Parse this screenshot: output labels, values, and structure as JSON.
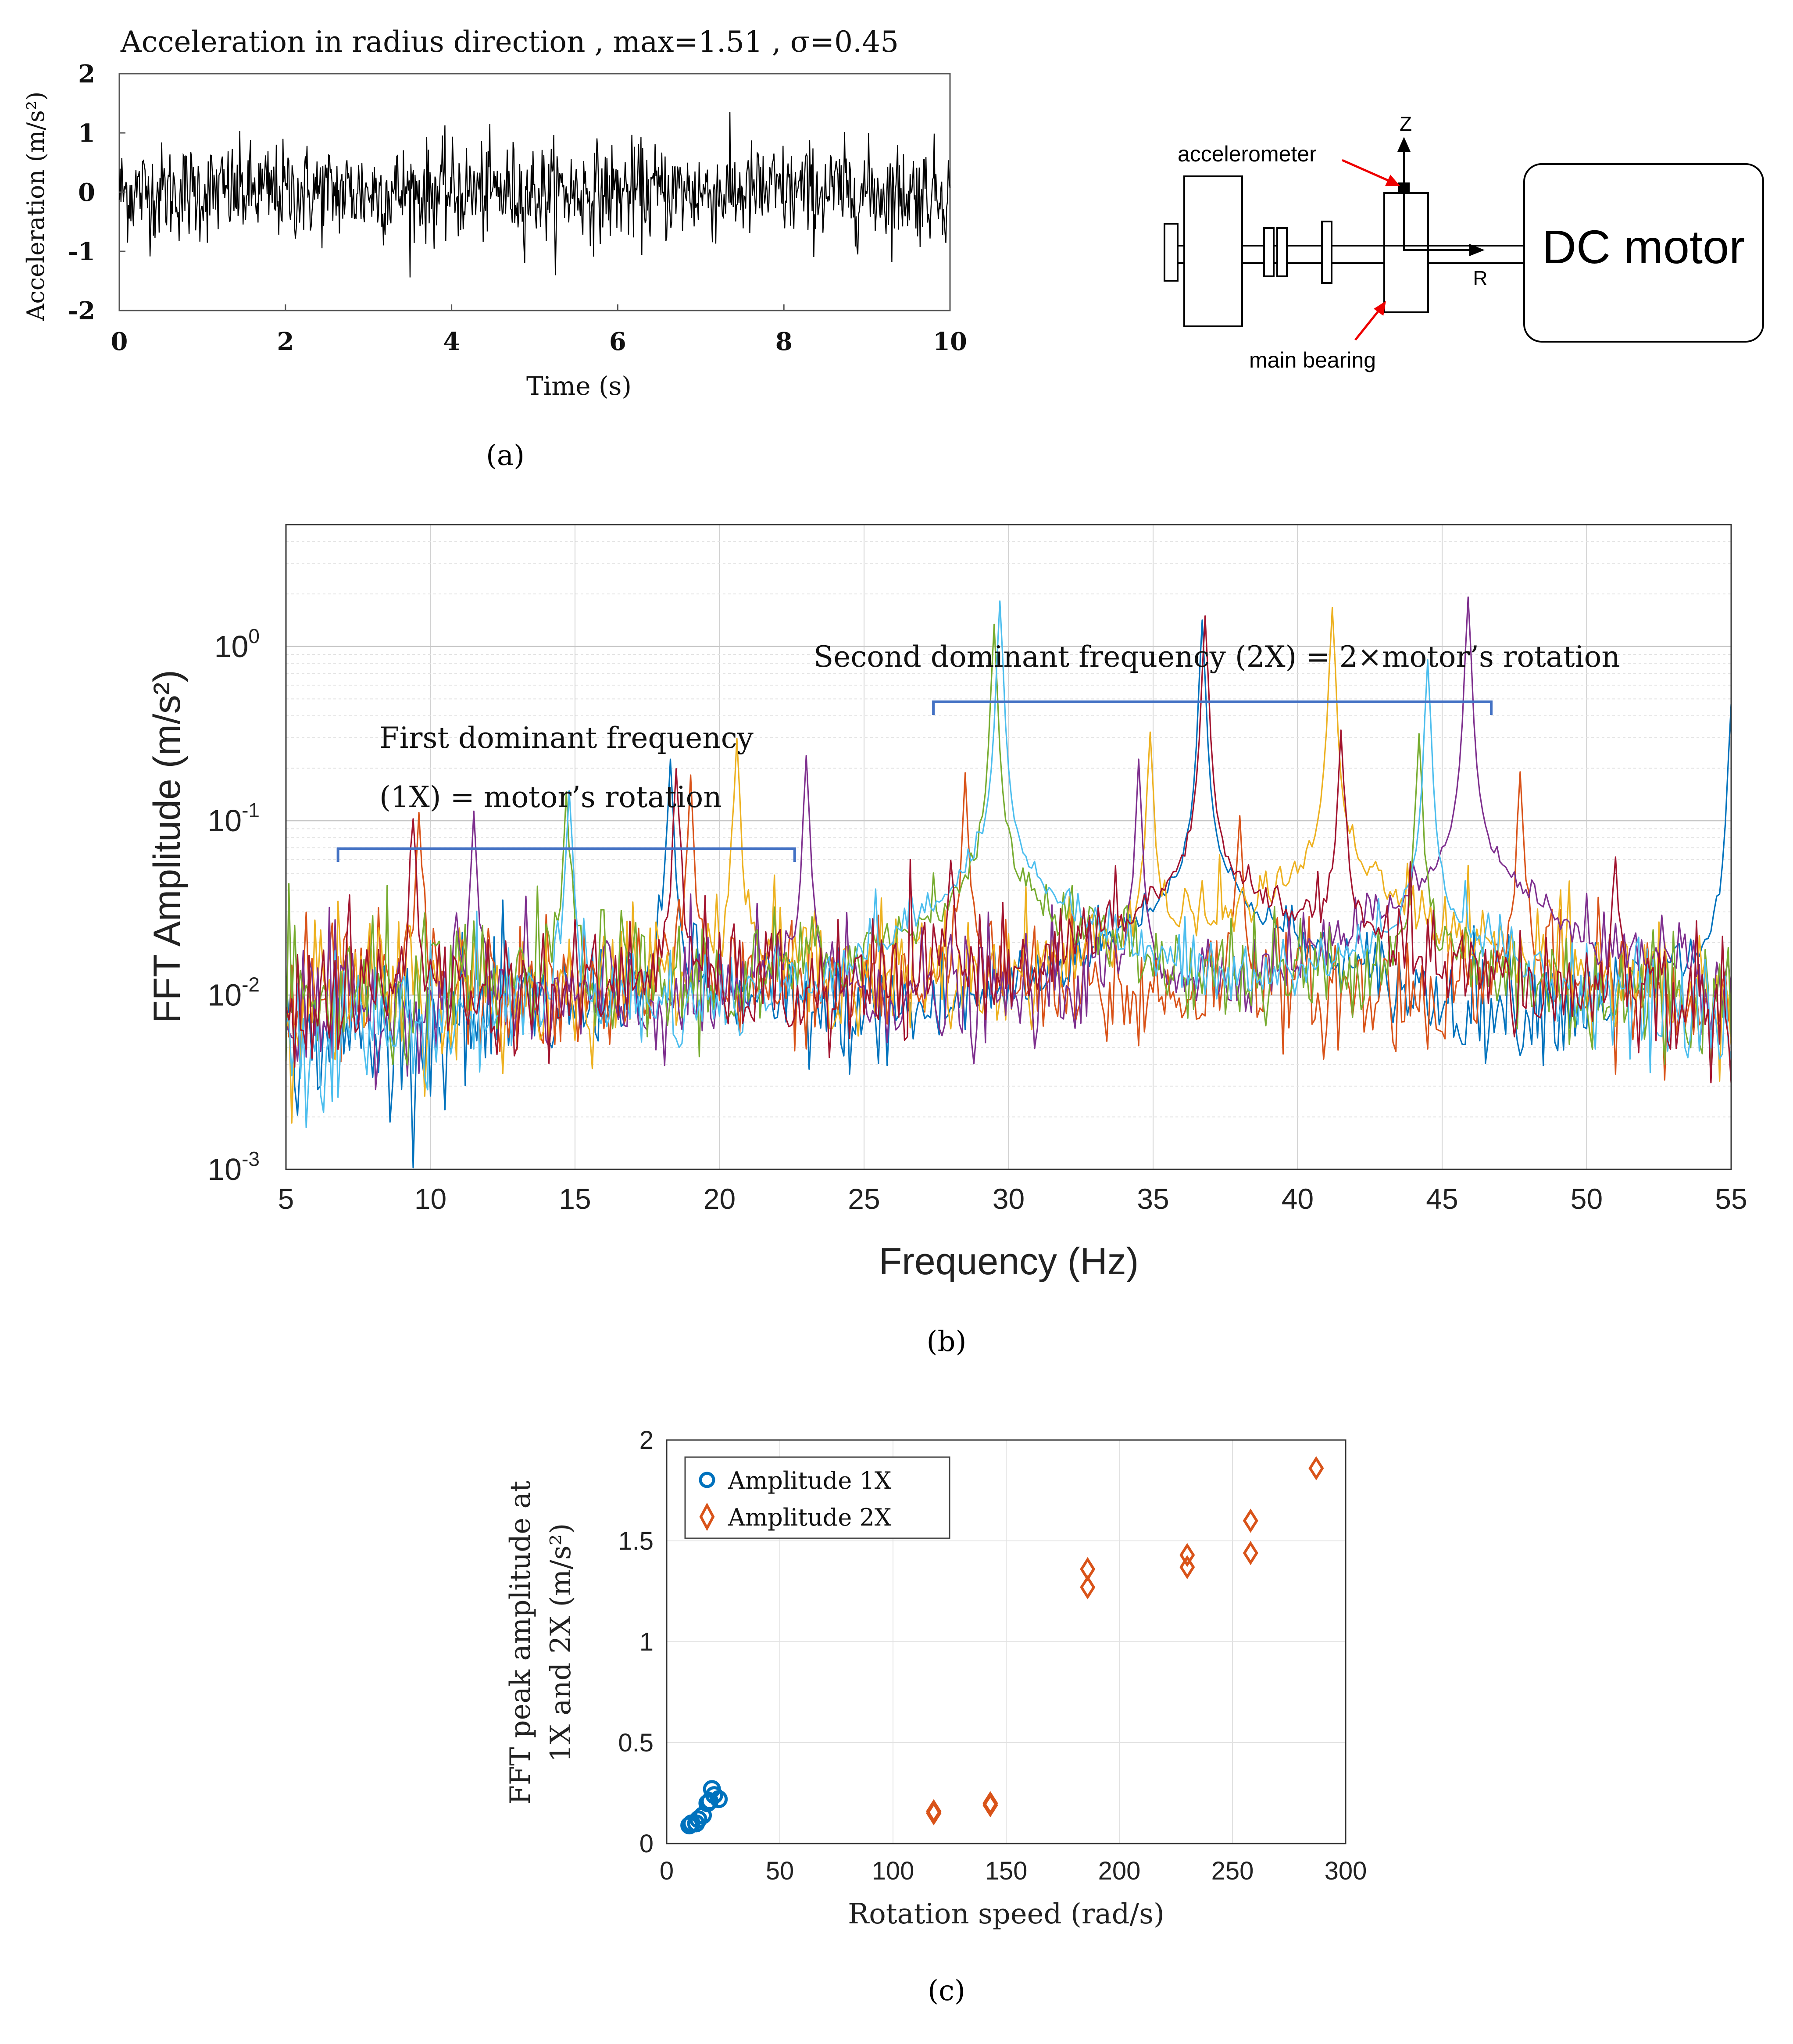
{
  "figure": {
    "panel_labels": [
      "(a)",
      "(b)",
      "(c)"
    ]
  },
  "chart_data": [
    {
      "id": "a",
      "type": "line",
      "title": "Acceleration in radius direction , max=1.51 , σ=0.45",
      "xlabel": "Time (s)",
      "ylabel": "Acceleration (m/s²)",
      "xlim": [
        0,
        10
      ],
      "ylim": [
        -2,
        2
      ],
      "xticks": [
        "0",
        "2",
        "4",
        "6",
        "8",
        "10"
      ],
      "yticks": [
        "-2",
        "-1",
        "0",
        "1",
        "2"
      ],
      "grid": false,
      "series": [
        {
          "stats": {
            "max": 1.51,
            "sigma": 0.45
          },
          "samples": 1000,
          "color": "#000000"
        }
      ]
    },
    {
      "id": "b",
      "type": "line",
      "xlabel": "Frequency (Hz)",
      "ylabel": "FFT Amplitude (m/s²)",
      "yscale": "log",
      "xlim": [
        5,
        55
      ],
      "ylim": [
        0.001,
        5
      ],
      "xticks": [
        "5",
        "10",
        "15",
        "20",
        "25",
        "30",
        "35",
        "40",
        "45",
        "50",
        "55"
      ],
      "yticks": [
        "10-3",
        "10-2",
        "10-1",
        "100"
      ],
      "grid": true,
      "annotations": [
        {
          "text_lines": [
            "First  dominant  frequency",
            "(1X)   =   motor’s   rotation"
          ],
          "bracket_hz": [
            6.8,
            22.6
          ]
        },
        {
          "text_lines": [
            "Second  dominant  frequency  (2X)  =  2×motor’s  rotation"
          ],
          "bracket_hz": [
            27.4,
            46.7
          ]
        }
      ],
      "series": [
        {
          "color": "#0072BD",
          "peaks": [
            {
              "x": 18.3,
              "y": 0.21
            },
            {
              "x": 36.7,
              "y": 1.37
            },
            {
              "x": 55.0,
              "y": 0.45
            }
          ]
        },
        {
          "color": "#D95319",
          "peaks": [
            {
              "x": 9.6,
              "y": 0.095
            },
            {
              "x": 19.0,
              "y": 0.16
            },
            {
              "x": 28.5,
              "y": 0.17
            },
            {
              "x": 38.0,
              "y": 0.1
            },
            {
              "x": 47.7,
              "y": 0.18
            }
          ]
        },
        {
          "color": "#EDB120",
          "peaks": [
            {
              "x": 20.6,
              "y": 0.27
            },
            {
              "x": 34.9,
              "y": 0.3
            },
            {
              "x": 41.2,
              "y": 1.6
            }
          ]
        },
        {
          "color": "#7E2F8E",
          "peaks": [
            {
              "x": 11.5,
              "y": 0.1
            },
            {
              "x": 23.0,
              "y": 0.22
            },
            {
              "x": 34.5,
              "y": 0.2
            },
            {
              "x": 45.9,
              "y": 1.86
            }
          ]
        },
        {
          "color": "#77AC30",
          "peaks": [
            {
              "x": 14.7,
              "y": 0.13
            },
            {
              "x": 29.5,
              "y": 1.27
            },
            {
              "x": 44.2,
              "y": 0.3
            }
          ]
        },
        {
          "color": "#4DBEEE",
          "peaks": [
            {
              "x": 14.8,
              "y": 0.14
            },
            {
              "x": 29.7,
              "y": 1.76
            },
            {
              "x": 44.5,
              "y": 0.8
            }
          ]
        },
        {
          "color": "#A2142F",
          "peaks": [
            {
              "x": 9.4,
              "y": 0.09
            },
            {
              "x": 18.5,
              "y": 0.18
            },
            {
              "x": 28.0,
              "y": 0.05
            },
            {
              "x": 36.8,
              "y": 1.44
            },
            {
              "x": 41.5,
              "y": 0.3
            },
            {
              "x": 51.0,
              "y": 0.05
            }
          ]
        }
      ]
    },
    {
      "id": "c",
      "type": "scatter",
      "xlabel": "Rotation speed (rad/s)",
      "ylabel": [
        "FFT peak amplitude at",
        "1X and 2X (m/s²)"
      ],
      "xlim": [
        0,
        300
      ],
      "ylim": [
        0,
        2
      ],
      "xticks": [
        "0",
        "50",
        "100",
        "150",
        "200",
        "250",
        "300"
      ],
      "yticks": [
        "0",
        "0.5",
        "1",
        "1.5",
        "2"
      ],
      "grid": true,
      "legend": "top-left",
      "series": [
        {
          "name": "Amplitude 1X",
          "marker": "circle",
          "color": "#0072BD",
          "points": [
            [
              10,
              0.09
            ],
            [
              11,
              0.1
            ],
            [
              13,
              0.1
            ],
            [
              14,
              0.12
            ],
            [
              16,
              0.14
            ],
            [
              18,
              0.2
            ],
            [
              19,
              0.21
            ],
            [
              20,
              0.27
            ],
            [
              21,
              0.24
            ],
            [
              23,
              0.22
            ]
          ]
        },
        {
          "name": "Amplitude 2X",
          "marker": "diamond",
          "color": "#D95319",
          "points": [
            [
              118,
              0.16
            ],
            [
              118,
              0.15
            ],
            [
              143,
              0.2
            ],
            [
              143,
              0.19
            ],
            [
              186,
              1.36
            ],
            [
              186,
              1.27
            ],
            [
              230,
              1.43
            ],
            [
              230,
              1.37
            ],
            [
              258,
              1.6
            ],
            [
              258,
              1.44
            ],
            [
              287,
              1.86
            ]
          ]
        }
      ]
    }
  ],
  "diagram": {
    "labels": {
      "accelerometer": "accelerometer",
      "main_bearing": "main bearing",
      "dc_motor": "DC motor",
      "z_axis": "Z",
      "r_axis": "R"
    }
  }
}
